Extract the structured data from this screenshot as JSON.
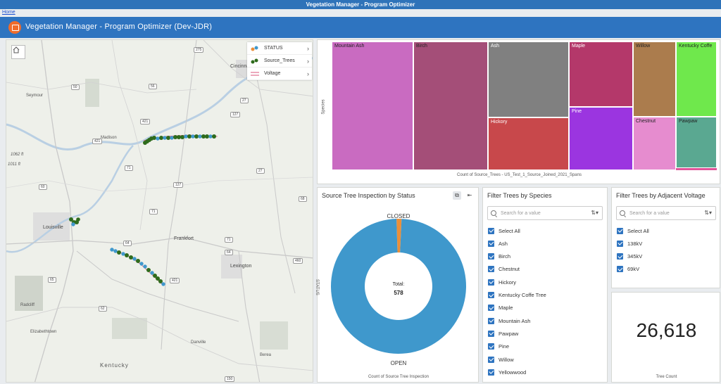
{
  "browser": {
    "title": "Vegetation Manager - Program Optimizer",
    "home_link": "Home"
  },
  "header": {
    "title": "Vegetation Manager - Program Optimizer (Dev-JDR)"
  },
  "map": {
    "legend": [
      {
        "label": "STATUS"
      },
      {
        "label": "Source_Trees"
      },
      {
        "label": "Voltage"
      }
    ],
    "places": [
      "Cincinnati",
      "Seymour",
      "Madison",
      "Louisville",
      "Frankfort",
      "Lexington",
      "Radcliff",
      "Elizabethtown",
      "Danville",
      "Berea",
      "Kentucky"
    ],
    "road_labels": [
      "275",
      "50",
      "56",
      "27",
      "421",
      "421",
      "127",
      "27",
      "127",
      "71",
      "71",
      "60",
      "64",
      "421",
      "460",
      "65",
      "62",
      "150",
      "68",
      "71",
      "64",
      "1062 ft",
      "1011 ft"
    ],
    "colors": {
      "open": "#3f98cc",
      "closed": "#ea8f3a",
      "source_trees": "#2e6b1c",
      "voltage": "#d9507a"
    }
  },
  "treemap": {
    "cells": [
      {
        "label": "Mountain Ash",
        "color": "#c96bc1"
      },
      {
        "label": "Birch",
        "color": "#a44e78"
      },
      {
        "label": "Ash",
        "color": "#808080"
      },
      {
        "label": "Hickory",
        "color": "#c8484b"
      },
      {
        "label": "Maple",
        "color": "#b4386a"
      },
      {
        "label": "Pine",
        "color": "#9b35e0"
      },
      {
        "label": "Willow",
        "color": "#ab7c4d"
      },
      {
        "label": "Kentucky Coffe",
        "color": "#6fe84c"
      },
      {
        "label": "Chestnut",
        "color": "#e68ccf"
      },
      {
        "label": "Pawpaw",
        "color": "#5aa891"
      }
    ],
    "ylabel": "Species",
    "xlabel": "Count of Source_Trees - US_Test_1_Source_Joined_2021_Spans"
  },
  "donut": {
    "title": "Source Tree Inspection by Status",
    "axis_label": "STATUS",
    "closed_label": "CLOSED",
    "open_label": "OPEN",
    "total_label": "Total:",
    "total_value": "578",
    "footer": "Count of Source Tree Inspection",
    "closed_fraction": 0.012
  },
  "species_filter": {
    "title": "Filter Trees by Species",
    "placeholder": "Search for a value",
    "items": [
      "Select All",
      "Ash",
      "Birch",
      "Chestnut",
      "Hickory",
      "Kentucky Coffe Tree",
      "Maple",
      "Mountain Ash",
      "Pawpaw",
      "Pine",
      "Willow",
      "Yellowwood"
    ]
  },
  "voltage_filter": {
    "title": "Filter Trees by Adjacent Voltage",
    "placeholder": "Search for a value",
    "items": [
      "Select All",
      "138kV",
      "345kV",
      "69kV"
    ]
  },
  "indicator": {
    "value": "26,618",
    "label": "Tree Count"
  }
}
